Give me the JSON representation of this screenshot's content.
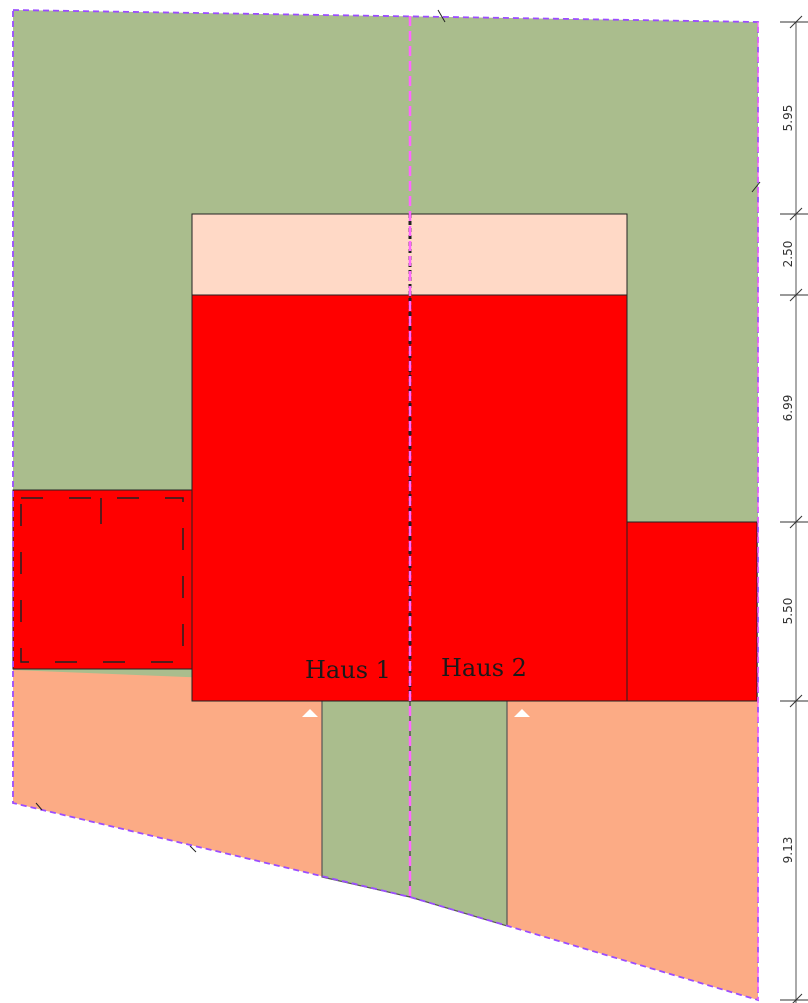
{
  "houses": [
    {
      "label": "Haus 1"
    },
    {
      "label": "Haus 2"
    }
  ],
  "dimensions": [
    {
      "value": "5.95"
    },
    {
      "value": "2.50"
    },
    {
      "value": "6.99"
    },
    {
      "value": "5.50"
    },
    {
      "value": "9.13"
    }
  ],
  "colors": {
    "garden": "#aabd8d",
    "building": "#ff0000",
    "terrace": "#ffd9c6",
    "paving": "#fcab85",
    "property_line": "#9b4dff",
    "divider_line": "#ff66ff",
    "outline": "#222222"
  }
}
